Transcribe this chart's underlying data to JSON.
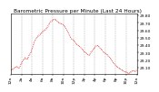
{
  "title": "Barometric Pressure per Minute (Last 24 Hours)",
  "background_color": "#ffffff",
  "plot_bg_color": "#ffffff",
  "line_color": "#dd0000",
  "grid_color": "#888888",
  "ylim": [
    29.02,
    29.82
  ],
  "yticks": [
    29.1,
    29.2,
    29.3,
    29.4,
    29.5,
    29.6,
    29.7,
    29.8
  ],
  "title_fontsize": 4.2,
  "tick_fontsize": 3.2,
  "pressure_points": [
    29.05,
    29.07,
    29.09,
    29.1,
    29.08,
    29.13,
    29.18,
    29.22,
    29.2,
    29.25,
    29.3,
    29.38,
    29.45,
    29.5,
    29.52,
    29.55,
    29.58,
    29.6,
    29.63,
    29.68,
    29.72,
    29.74,
    29.75,
    29.73,
    29.71,
    29.7,
    29.68,
    29.65,
    29.6,
    29.55,
    29.5,
    29.48,
    29.45,
    29.42,
    29.4,
    29.38,
    29.35,
    29.32,
    29.3,
    29.28,
    29.32,
    29.35,
    29.38,
    29.4,
    29.38,
    29.35,
    29.32,
    29.3,
    29.28,
    29.25,
    29.22,
    29.18,
    29.15,
    29.12,
    29.1,
    29.08,
    29.06,
    29.05,
    29.04,
    29.03,
    29.05,
    29.07,
    29.06,
    29.08
  ],
  "xtick_hours": [
    0,
    2,
    4,
    6,
    8,
    10,
    12,
    14,
    16,
    18,
    20,
    22,
    24
  ]
}
